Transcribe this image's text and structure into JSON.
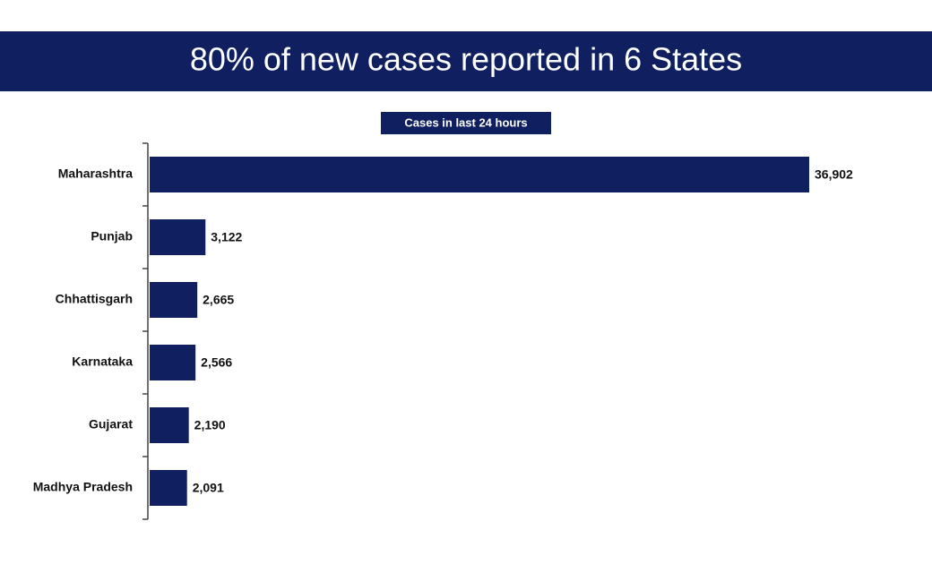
{
  "chart_data": {
    "type": "bar",
    "orientation": "horizontal",
    "title": "80% of new cases reported in 6 States",
    "subtitle": "Cases in last 24 hours",
    "categories": [
      "Maharashtra",
      "Punjab",
      "Chhattisgarh",
      "Karnataka",
      "Gujarat",
      "Madhya Pradesh"
    ],
    "values": [
      36902,
      3122,
      2665,
      2566,
      2190,
      2091
    ],
    "value_labels": [
      "36,902",
      "3,122",
      "2,665",
      "2,566",
      "2,190",
      "2,091"
    ],
    "color": "#0f1f5f"
  }
}
